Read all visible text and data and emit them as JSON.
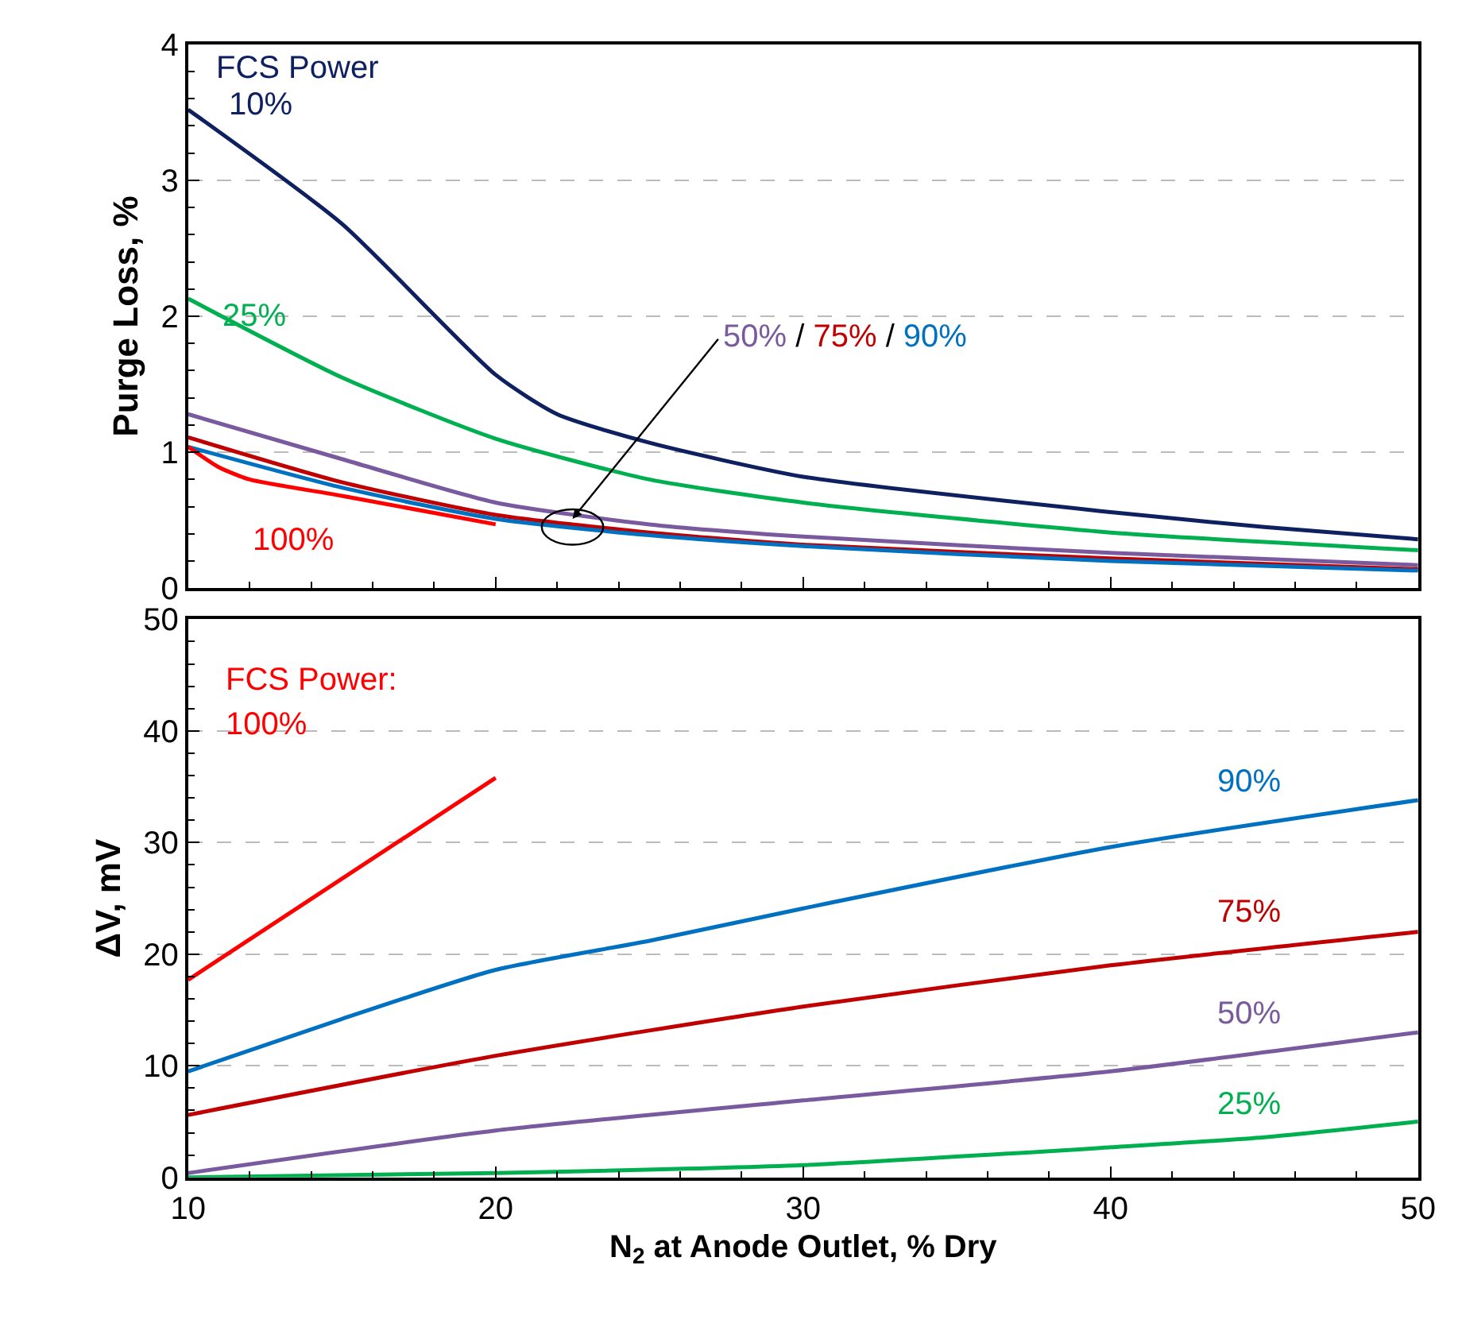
{
  "chart_data": [
    {
      "type": "line",
      "ylabel": "Purge Loss, %",
      "xlim": [
        10,
        50
      ],
      "xticks": [
        10,
        20,
        30,
        40,
        50
      ],
      "ylim": [
        0,
        4
      ],
      "yticks": [
        0,
        1,
        2,
        3,
        4
      ],
      "grid": "y",
      "legend": false,
      "tick_labels": "y",
      "annotations": [
        "FCS Power",
        {
          "text": "50% / 75% / 90%",
          "x": 22.5,
          "y": 0.45
        }
      ],
      "series": [
        {
          "name": "10%",
          "color": "#0e2060",
          "x": [
            10,
            15,
            20,
            22,
            25,
            30,
            40,
            45,
            50
          ],
          "values": [
            3.52,
            2.68,
            1.57,
            1.28,
            1.07,
            0.82,
            0.56,
            0.45,
            0.36
          ]
        },
        {
          "name": "25%",
          "color": "#00b050",
          "x": [
            10,
            15,
            20,
            25,
            30,
            40,
            50
          ],
          "values": [
            2.13,
            1.55,
            1.1,
            0.8,
            0.63,
            0.41,
            0.28
          ]
        },
        {
          "color": "#7a5a9e",
          "x": [
            10,
            15,
            20,
            25,
            30,
            40,
            50
          ],
          "values": [
            1.28,
            0.95,
            0.63,
            0.47,
            0.38,
            0.26,
            0.17
          ]
        },
        {
          "color": "#c00000",
          "x": [
            10,
            15,
            20,
            25,
            30,
            40,
            50
          ],
          "values": [
            1.11,
            0.78,
            0.54,
            0.41,
            0.32,
            0.22,
            0.14
          ]
        },
        {
          "color": "#0070c0",
          "x": [
            10,
            15,
            20,
            25,
            30,
            40,
            50
          ],
          "values": [
            1.04,
            0.74,
            0.51,
            0.39,
            0.31,
            0.2,
            0.13
          ]
        },
        {
          "name": "100%",
          "color": "#ff0000",
          "x": [
            10,
            11,
            12,
            15,
            20
          ],
          "values": [
            1.04,
            0.89,
            0.8,
            0.68,
            0.47
          ]
        }
      ]
    },
    {
      "type": "line",
      "ylabel": "ΔV, mV",
      "xlabel": "N$_{2}$ at Anode Outlet, % Dry",
      "xlim": [
        10,
        50
      ],
      "xticks": [
        10,
        20,
        30,
        40,
        50
      ],
      "ylim": [
        0,
        50
      ],
      "yticks": [
        0,
        10,
        20,
        30,
        40,
        50
      ],
      "grid": "y",
      "legend": false,
      "annotations": [
        "FCS Power:"
      ],
      "series": [
        {
          "name": "100%",
          "color": "#ff0000",
          "x": [
            10,
            20
          ],
          "values": [
            17.7,
            35.8
          ]
        },
        {
          "name": "90%",
          "color": "#0070c0",
          "x": [
            10,
            15,
            20,
            25,
            30,
            40,
            50
          ],
          "values": [
            9.5,
            14.2,
            18.6,
            21.2,
            24.1,
            29.6,
            33.8
          ]
        },
        {
          "name": "75%",
          "color": "#c00000",
          "x": [
            10,
            20,
            30,
            40,
            50
          ],
          "values": [
            5.6,
            10.9,
            15.3,
            19.0,
            22.0
          ]
        },
        {
          "name": "50%",
          "color": "#7a5a9e",
          "x": [
            10,
            20,
            30,
            40,
            50
          ],
          "values": [
            0.4,
            4.2,
            6.9,
            9.5,
            13.0
          ]
        },
        {
          "name": "25%",
          "color": "#00b050",
          "x": [
            10,
            20,
            30,
            40,
            45,
            50
          ],
          "values": [
            0,
            0.4,
            1.1,
            2.7,
            3.6,
            5.0
          ]
        }
      ]
    }
  ]
}
